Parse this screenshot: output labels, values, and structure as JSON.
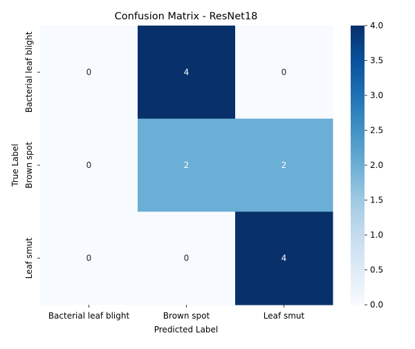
{
  "chart_data": {
    "type": "heatmap",
    "title": "Confusion Matrix - ResNet18",
    "xlabel": "Predicted Label",
    "ylabel": "True Label",
    "x_categories": [
      "Bacterial leaf blight",
      "Brown spot",
      "Leaf smut"
    ],
    "y_categories": [
      "Bacterial leaf blight",
      "Brown spot",
      "Leaf smut"
    ],
    "values": [
      [
        0,
        4,
        0
      ],
      [
        0,
        2,
        2
      ],
      [
        0,
        0,
        4
      ]
    ],
    "colorbar": {
      "range": [
        0,
        4
      ],
      "ticks": [
        "0.0",
        "0.5",
        "1.0",
        "1.5",
        "2.0",
        "2.5",
        "3.0",
        "3.5",
        "4.0"
      ],
      "colormap": "Blues"
    },
    "annotation_colors": {
      "dark_bg": "#ffffff",
      "light_bg": "#262626"
    }
  }
}
